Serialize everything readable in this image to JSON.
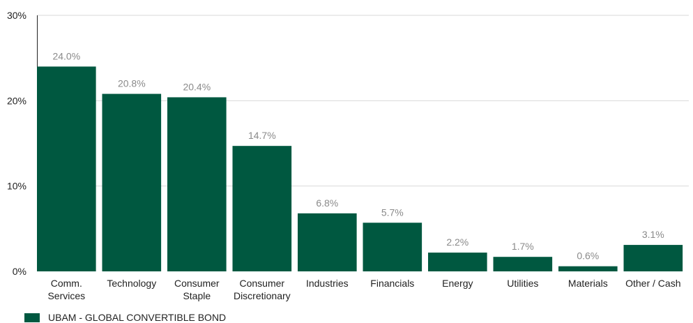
{
  "chart_data": {
    "type": "bar",
    "categories": [
      [
        "Comm.",
        "Services"
      ],
      [
        "Technology"
      ],
      [
        "Consumer",
        "Staple"
      ],
      [
        "Consumer",
        "Discretionary"
      ],
      [
        "Industries"
      ],
      [
        "Financials"
      ],
      [
        "Energy"
      ],
      [
        "Utilities"
      ],
      [
        "Materials"
      ],
      [
        "Other / Cash"
      ]
    ],
    "values": [
      24.0,
      20.8,
      20.4,
      14.7,
      6.8,
      5.7,
      2.2,
      1.7,
      0.6,
      3.1
    ],
    "data_labels": [
      "24.0%",
      "20.8%",
      "20.4%",
      "14.7%",
      "6.8%",
      "5.7%",
      "2.2%",
      "1.7%",
      "0.6%",
      "3.1%"
    ],
    "ylim": [
      0,
      30
    ],
    "yticks": [
      0,
      10,
      20,
      30
    ],
    "ytick_labels": [
      "0%",
      "10%",
      "20%",
      "30%"
    ],
    "grid": true,
    "legend_position": "bottom-left",
    "series": [
      {
        "name": "UBAM - GLOBAL CONVERTIBLE BOND",
        "color": "#005840"
      }
    ]
  },
  "legend": {
    "label": "UBAM - GLOBAL CONVERTIBLE BOND"
  }
}
